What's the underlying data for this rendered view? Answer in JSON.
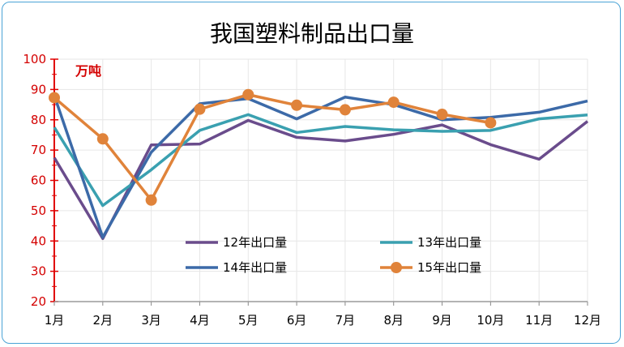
{
  "chart_data": {
    "type": "line",
    "title": "我国塑料制品出口量",
    "unit_label": "万吨",
    "categories": [
      "1月",
      "2月",
      "3月",
      "4月",
      "5月",
      "6月",
      "7月",
      "8月",
      "9月",
      "10月",
      "11月",
      "12月"
    ],
    "ylim": [
      20,
      100
    ],
    "yticks": [
      20,
      30,
      40,
      50,
      60,
      70,
      80,
      90,
      100
    ],
    "grid": true,
    "legend_position": "lower-center",
    "series": [
      {
        "name": "12年出口量",
        "color": "#6a4c8c",
        "markers": false,
        "values": [
          67.5,
          40.8,
          71.7,
          72.0,
          79.8,
          74.2,
          73.0,
          75.2,
          78.3,
          71.8,
          67.0,
          79.5
        ]
      },
      {
        "name": "13年出口量",
        "color": "#3aa0b0",
        "markers": false,
        "values": [
          77.5,
          51.7,
          63.5,
          76.5,
          81.7,
          75.8,
          77.8,
          76.7,
          76.2,
          76.5,
          80.3,
          81.6
        ]
      },
      {
        "name": "14年出口量",
        "color": "#3c6aa8",
        "markers": false,
        "values": [
          88.0,
          41.2,
          69.3,
          85.3,
          87.0,
          80.3,
          87.5,
          85.0,
          80.0,
          80.8,
          82.5,
          86.2
        ]
      },
      {
        "name": "15年出口量",
        "color": "#e0833a",
        "markers": true,
        "values": [
          87.3,
          73.7,
          53.5,
          83.5,
          88.3,
          84.8,
          83.3,
          85.8,
          81.8,
          79.0,
          null,
          null
        ]
      }
    ]
  }
}
